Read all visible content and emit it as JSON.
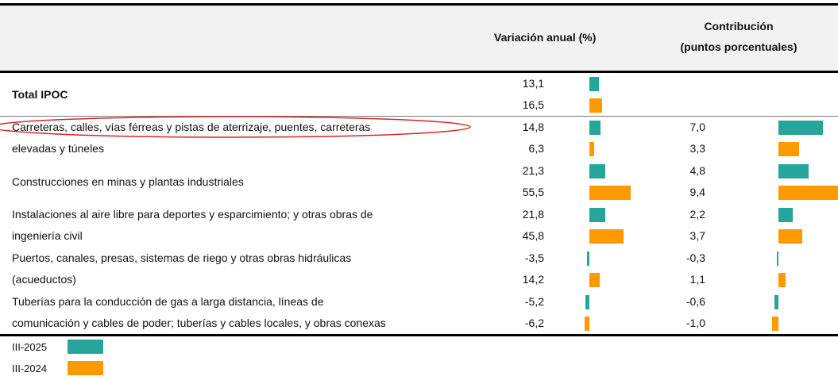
{
  "chart_data": {
    "type": "bar-table",
    "headers": [
      "Variación anual (%)",
      "Contribución",
      "(puntos porcentuales)"
    ],
    "categories": [
      [
        "Total IPOC"
      ],
      [
        "Carreteras, calles, vías férreas y pistas de aterrizaje, puentes, carreteras",
        "elevadas y túneles"
      ],
      [
        "Construcciones  en minas y plantas industriales"
      ],
      [
        "Instalaciones al aire libre para deportes y esparcimiento; y otras obras de",
        "ingeniería civil"
      ],
      [
        "Puertos, canales, presas, sistemas de riego y otras obras hidráulicas",
        "(acueductos)"
      ],
      [
        "Tuberías para la conducción de gas a larga distancia, líneas de",
        "comunicación y cables de poder; tuberías y cables locales, y obras conexas"
      ]
    ],
    "series": [
      {
        "name": "III-2025",
        "color": "#26a69a",
        "values": [
          13.1,
          14.8,
          21.3,
          21.8,
          -3.5,
          -5.2
        ],
        "value_labels": [
          "13,1",
          "14,8",
          "21,3",
          "21,8",
          "-3,5",
          "-5,2"
        ],
        "contribution": [
          null,
          7.0,
          4.8,
          2.2,
          -0.3,
          -0.6
        ],
        "contribution_labels": [
          null,
          "7,0",
          "4,8",
          "2,2",
          "-0,3",
          "-0,6"
        ]
      },
      {
        "name": "III-2024",
        "color": "#ff9900",
        "values": [
          16.5,
          6.3,
          55.5,
          45.8,
          14.2,
          -6.2
        ],
        "value_labels": [
          "16,5",
          "6,3",
          "55,5",
          "45,8",
          "14,2",
          "-6,2"
        ],
        "contribution": [
          null,
          3.3,
          9.4,
          3.7,
          1.1,
          -1.0
        ],
        "contribution_labels": [
          null,
          "3,3",
          "9,4",
          "3,7",
          "1,1",
          "-1,0"
        ]
      }
    ]
  }
}
